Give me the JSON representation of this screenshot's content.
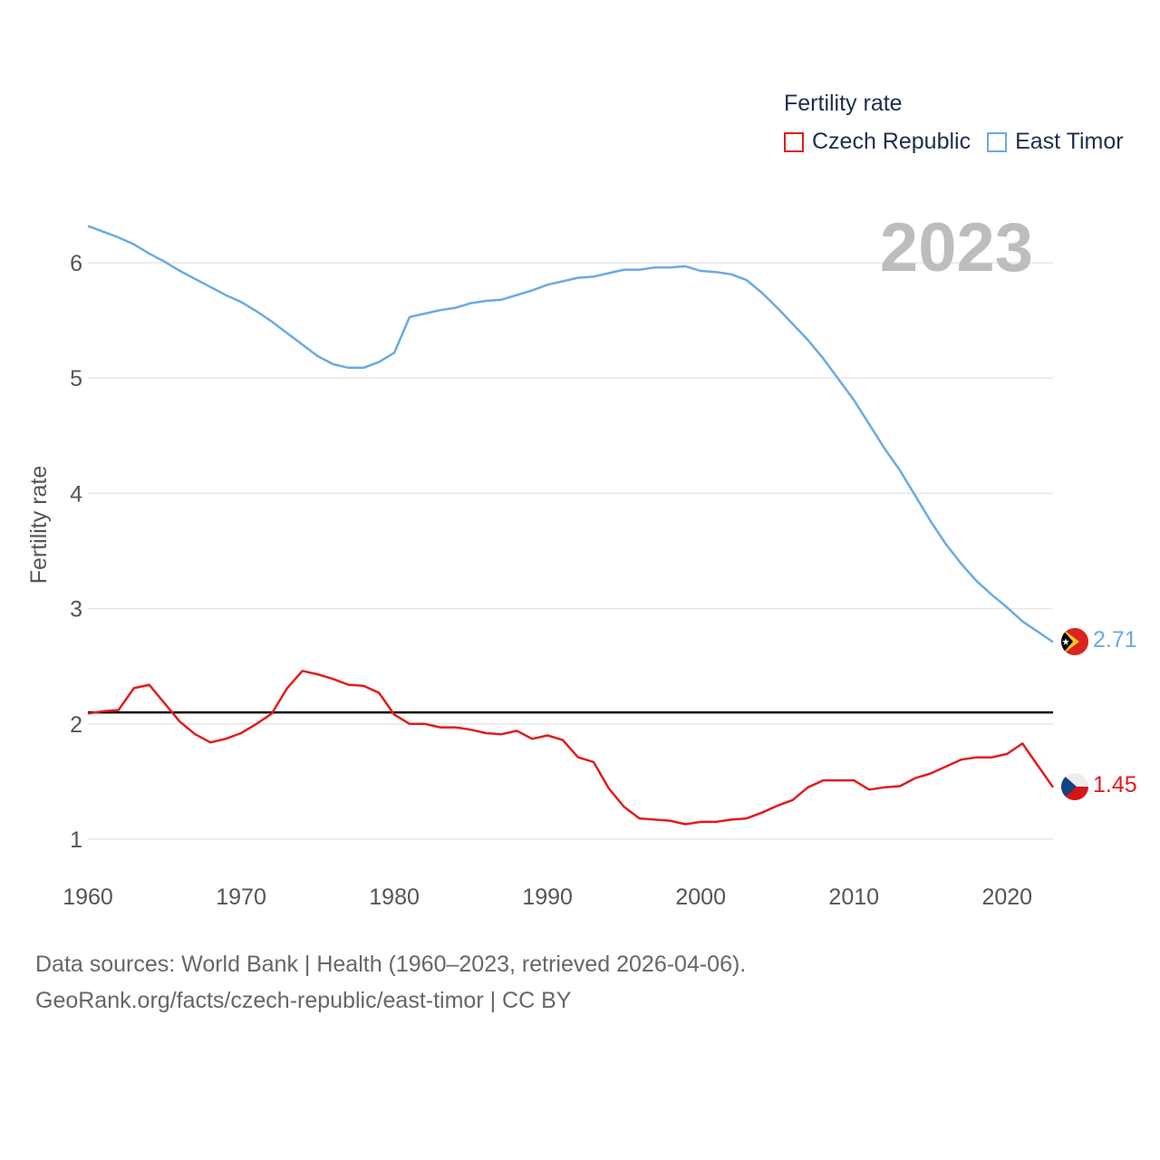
{
  "chart_data": {
    "type": "line",
    "big_year": "2023",
    "ylabel": "Fertility rate",
    "xlim": [
      1960,
      2023
    ],
    "ylim": [
      0.5,
      6.8
    ],
    "x_ticks": [
      "1960",
      "1970",
      "1980",
      "1990",
      "2000",
      "2010",
      "2020"
    ],
    "y_ticks": [
      "1",
      "2",
      "3",
      "4",
      "5",
      "6"
    ],
    "reference_line": 2.1,
    "legend": {
      "title": "Fertility rate",
      "position": "top-right"
    },
    "colors": {
      "czech": "#e31b1b",
      "timor": "#6aaae4",
      "grid": "#e6e6e6",
      "axis_text": "#555555",
      "reference": "#000000",
      "big_year": "#bdbdbd"
    },
    "series": [
      {
        "name": "Czech Republic",
        "end_label": "1.45",
        "x": [
          1960,
          1961,
          1962,
          1963,
          1964,
          1965,
          1966,
          1967,
          1968,
          1969,
          1970,
          1971,
          1972,
          1973,
          1974,
          1975,
          1976,
          1977,
          1978,
          1979,
          1980,
          1981,
          1982,
          1983,
          1984,
          1985,
          1986,
          1987,
          1988,
          1989,
          1990,
          1991,
          1992,
          1993,
          1994,
          1995,
          1996,
          1997,
          1998,
          1999,
          2000,
          2001,
          2002,
          2003,
          2004,
          2005,
          2006,
          2007,
          2008,
          2009,
          2010,
          2011,
          2012,
          2013,
          2014,
          2015,
          2016,
          2017,
          2018,
          2019,
          2020,
          2021,
          2022,
          2023
        ],
        "values": [
          2.09,
          2.11,
          2.12,
          2.31,
          2.34,
          2.18,
          2.02,
          1.91,
          1.84,
          1.87,
          1.92,
          2.0,
          2.09,
          2.31,
          2.46,
          2.43,
          2.39,
          2.34,
          2.33,
          2.27,
          2.08,
          2.0,
          2.0,
          1.97,
          1.97,
          1.95,
          1.92,
          1.91,
          1.94,
          1.87,
          1.9,
          1.86,
          1.71,
          1.67,
          1.44,
          1.28,
          1.18,
          1.17,
          1.16,
          1.13,
          1.15,
          1.15,
          1.17,
          1.18,
          1.23,
          1.29,
          1.34,
          1.45,
          1.51,
          1.51,
          1.51,
          1.43,
          1.45,
          1.46,
          1.53,
          1.57,
          1.63,
          1.69,
          1.71,
          1.71,
          1.74,
          1.83,
          1.64,
          1.45
        ]
      },
      {
        "name": "East Timor",
        "end_label": "2.71",
        "x": [
          1960,
          1961,
          1962,
          1963,
          1964,
          1965,
          1966,
          1967,
          1968,
          1969,
          1970,
          1971,
          1972,
          1973,
          1974,
          1975,
          1976,
          1977,
          1978,
          1979,
          1980,
          1981,
          1982,
          1983,
          1984,
          1985,
          1986,
          1987,
          1988,
          1989,
          1990,
          1991,
          1992,
          1993,
          1994,
          1995,
          1996,
          1997,
          1998,
          1999,
          2000,
          2001,
          2002,
          2003,
          2004,
          2005,
          2006,
          2007,
          2008,
          2009,
          2010,
          2011,
          2012,
          2013,
          2014,
          2015,
          2016,
          2017,
          2018,
          2019,
          2020,
          2021,
          2022,
          2023
        ],
        "values": [
          6.32,
          6.27,
          6.22,
          6.16,
          6.08,
          6.01,
          5.93,
          5.86,
          5.79,
          5.72,
          5.66,
          5.58,
          5.49,
          5.39,
          5.29,
          5.19,
          5.12,
          5.09,
          5.09,
          5.14,
          5.22,
          5.53,
          5.56,
          5.59,
          5.61,
          5.65,
          5.67,
          5.68,
          5.72,
          5.76,
          5.81,
          5.84,
          5.87,
          5.88,
          5.91,
          5.94,
          5.94,
          5.96,
          5.96,
          5.97,
          5.93,
          5.92,
          5.9,
          5.85,
          5.74,
          5.61,
          5.47,
          5.33,
          5.17,
          4.99,
          4.81,
          4.6,
          4.39,
          4.2,
          3.98,
          3.76,
          3.56,
          3.39,
          3.24,
          3.12,
          3.01,
          2.89,
          2.8,
          2.71
        ]
      }
    ]
  },
  "source": {
    "line1": "Data sources: World Bank | Health (1960–2023, retrieved 2026-04-06).",
    "line2": "GeoRank.org/facts/czech-republic/east-timor | CC BY"
  }
}
